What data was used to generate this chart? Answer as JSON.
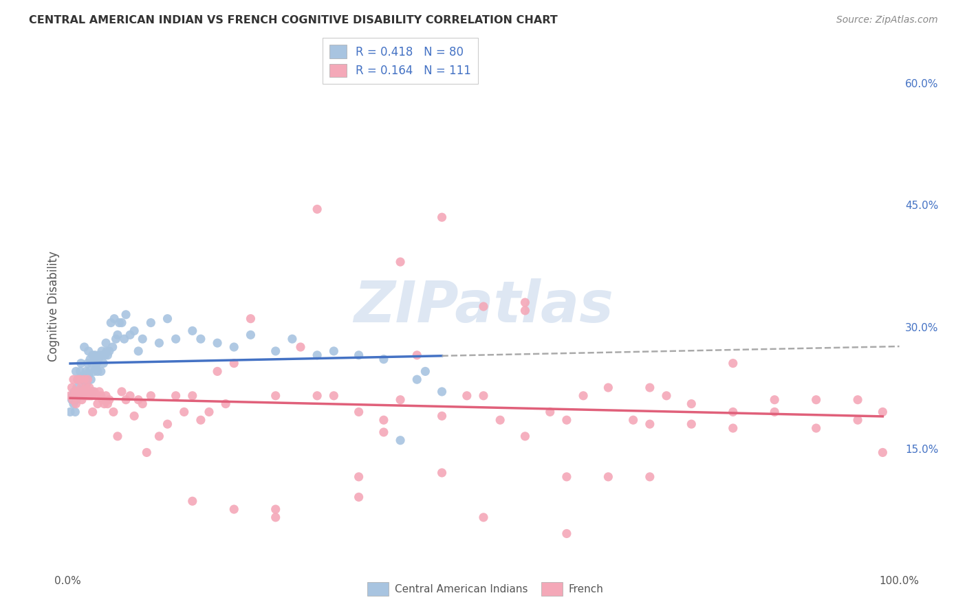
{
  "title": "CENTRAL AMERICAN INDIAN VS FRENCH COGNITIVE DISABILITY CORRELATION CHART",
  "source": "Source: ZipAtlas.com",
  "ylabel": "Cognitive Disability",
  "xlim": [
    0,
    1.0
  ],
  "ylim": [
    0,
    0.65
  ],
  "xtick_vals": [
    0.0,
    0.25,
    0.5,
    0.75,
    1.0
  ],
  "xtick_labels": [
    "0.0%",
    "",
    "",
    "",
    "100.0%"
  ],
  "ytick_vals_right": [
    0.15,
    0.3,
    0.45,
    0.6
  ],
  "ytick_labels_right": [
    "15.0%",
    "30.0%",
    "45.0%",
    "60.0%"
  ],
  "blue_R": 0.418,
  "blue_N": 80,
  "pink_R": 0.164,
  "pink_N": 111,
  "blue_scatter_color": "#a8c4e0",
  "pink_scatter_color": "#f4a8b8",
  "blue_line_color": "#4472c4",
  "pink_line_color": "#e0607a",
  "legend_text_R_color": "#000000",
  "legend_text_N_color": "#3366cc",
  "legend_box_blue": "#a8c4e0",
  "legend_box_pink": "#f4a8b8",
  "background_color": "#ffffff",
  "grid_color": "#d0d0d0",
  "watermark_text": "ZIPatlas",
  "watermark_color": "#c8d8ec",
  "title_color": "#333333",
  "source_color": "#888888",
  "tick_color": "#555555",
  "ylabel_color": "#555555",
  "blue_x": [
    0.003,
    0.005,
    0.006,
    0.007,
    0.008,
    0.009,
    0.01,
    0.01,
    0.011,
    0.012,
    0.013,
    0.014,
    0.015,
    0.015,
    0.016,
    0.017,
    0.018,
    0.019,
    0.02,
    0.02,
    0.021,
    0.022,
    0.023,
    0.024,
    0.025,
    0.025,
    0.026,
    0.027,
    0.028,
    0.029,
    0.03,
    0.03,
    0.032,
    0.033,
    0.034,
    0.035,
    0.036,
    0.037,
    0.038,
    0.04,
    0.041,
    0.042,
    0.043,
    0.045,
    0.046,
    0.047,
    0.048,
    0.05,
    0.052,
    0.054,
    0.056,
    0.058,
    0.06,
    0.062,
    0.065,
    0.068,
    0.07,
    0.075,
    0.08,
    0.085,
    0.09,
    0.1,
    0.11,
    0.12,
    0.13,
    0.15,
    0.16,
    0.18,
    0.2,
    0.22,
    0.25,
    0.27,
    0.3,
    0.32,
    0.35,
    0.38,
    0.4,
    0.42,
    0.43,
    0.45
  ],
  "blue_y": [
    0.195,
    0.21,
    0.215,
    0.205,
    0.22,
    0.195,
    0.21,
    0.245,
    0.225,
    0.235,
    0.215,
    0.22,
    0.245,
    0.215,
    0.255,
    0.235,
    0.225,
    0.24,
    0.22,
    0.275,
    0.235,
    0.245,
    0.23,
    0.255,
    0.24,
    0.27,
    0.245,
    0.26,
    0.235,
    0.255,
    0.22,
    0.265,
    0.245,
    0.265,
    0.25,
    0.255,
    0.245,
    0.26,
    0.265,
    0.245,
    0.27,
    0.265,
    0.255,
    0.265,
    0.28,
    0.27,
    0.265,
    0.27,
    0.305,
    0.275,
    0.31,
    0.285,
    0.29,
    0.305,
    0.305,
    0.285,
    0.315,
    0.29,
    0.295,
    0.27,
    0.285,
    0.305,
    0.28,
    0.31,
    0.285,
    0.295,
    0.285,
    0.28,
    0.275,
    0.29,
    0.27,
    0.285,
    0.265,
    0.27,
    0.265,
    0.26,
    0.16,
    0.235,
    0.245,
    0.22
  ],
  "pink_x": [
    0.003,
    0.005,
    0.006,
    0.007,
    0.008,
    0.009,
    0.01,
    0.011,
    0.012,
    0.013,
    0.014,
    0.015,
    0.016,
    0.017,
    0.018,
    0.019,
    0.02,
    0.021,
    0.022,
    0.023,
    0.024,
    0.025,
    0.026,
    0.027,
    0.028,
    0.029,
    0.03,
    0.032,
    0.034,
    0.036,
    0.038,
    0.04,
    0.042,
    0.044,
    0.046,
    0.048,
    0.05,
    0.055,
    0.06,
    0.065,
    0.07,
    0.075,
    0.08,
    0.085,
    0.09,
    0.095,
    0.1,
    0.11,
    0.12,
    0.13,
    0.14,
    0.15,
    0.16,
    0.17,
    0.18,
    0.19,
    0.2,
    0.22,
    0.25,
    0.28,
    0.3,
    0.32,
    0.35,
    0.38,
    0.4,
    0.42,
    0.45,
    0.48,
    0.5,
    0.52,
    0.55,
    0.58,
    0.6,
    0.62,
    0.65,
    0.68,
    0.7,
    0.72,
    0.75,
    0.8,
    0.85,
    0.9,
    0.95,
    0.98,
    0.3,
    0.4,
    0.35,
    0.25,
    0.5,
    0.45,
    0.55,
    0.6,
    0.65,
    0.7,
    0.75,
    0.8,
    0.85,
    0.9,
    0.95,
    0.98,
    0.15,
    0.2,
    0.25,
    0.35,
    0.5,
    0.6,
    0.7,
    0.8,
    0.55,
    0.45,
    0.38
  ],
  "pink_y": [
    0.215,
    0.225,
    0.21,
    0.235,
    0.215,
    0.22,
    0.205,
    0.22,
    0.235,
    0.215,
    0.22,
    0.235,
    0.225,
    0.21,
    0.22,
    0.215,
    0.235,
    0.22,
    0.225,
    0.215,
    0.235,
    0.215,
    0.225,
    0.215,
    0.22,
    0.215,
    0.195,
    0.22,
    0.215,
    0.205,
    0.22,
    0.215,
    0.21,
    0.205,
    0.215,
    0.205,
    0.21,
    0.195,
    0.165,
    0.22,
    0.21,
    0.215,
    0.19,
    0.21,
    0.205,
    0.145,
    0.215,
    0.165,
    0.18,
    0.215,
    0.195,
    0.215,
    0.185,
    0.195,
    0.245,
    0.205,
    0.255,
    0.31,
    0.215,
    0.275,
    0.215,
    0.215,
    0.195,
    0.185,
    0.21,
    0.265,
    0.19,
    0.215,
    0.215,
    0.185,
    0.165,
    0.195,
    0.185,
    0.215,
    0.225,
    0.185,
    0.225,
    0.215,
    0.205,
    0.255,
    0.21,
    0.175,
    0.21,
    0.145,
    0.445,
    0.38,
    0.115,
    0.075,
    0.325,
    0.435,
    0.33,
    0.115,
    0.115,
    0.115,
    0.18,
    0.195,
    0.195,
    0.21,
    0.185,
    0.195,
    0.085,
    0.075,
    0.065,
    0.09,
    0.065,
    0.045,
    0.18,
    0.175,
    0.32,
    0.12,
    0.17
  ]
}
